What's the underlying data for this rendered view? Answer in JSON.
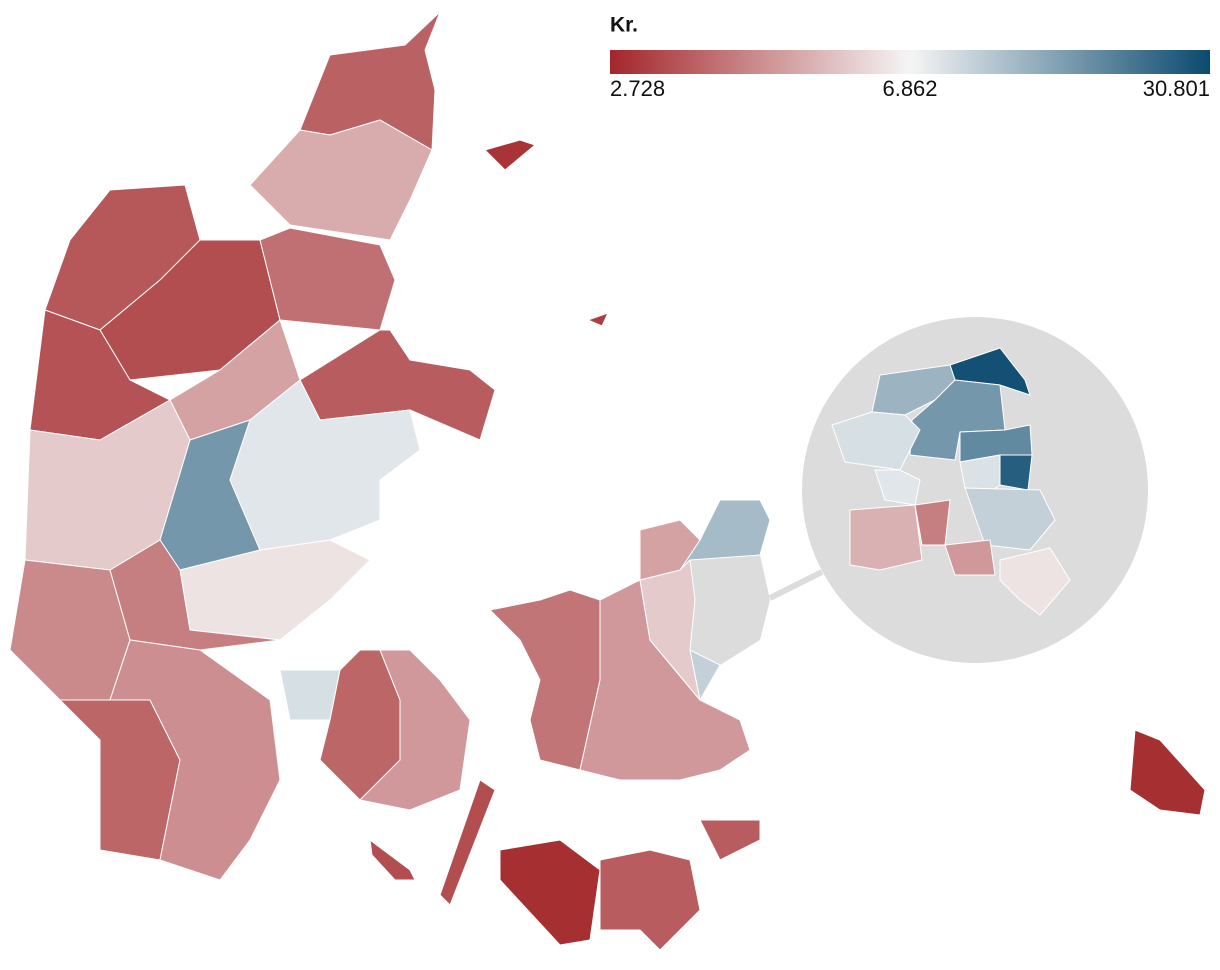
{
  "legend": {
    "title": "Kr.",
    "colors": [
      "#a3262a",
      "#f5f5f5",
      "#0b4a6f"
    ],
    "ticks": [
      {
        "value": 2728,
        "label": "2.728"
      },
      {
        "value": 6862,
        "label": "6.862"
      },
      {
        "value": 30801,
        "label": "30.801"
      }
    ]
  },
  "map": {
    "values": [
      3900,
      5400,
      3700,
      3500,
      4200,
      3600,
      5200,
      3800,
      6000,
      20000,
      9000,
      6500,
      4700,
      4500,
      4000,
      4800,
      10000,
      4000,
      5000,
      4300,
      5000,
      15000,
      6000,
      12000,
      5200,
      2900,
      3800,
      3800,
      2900,
      3000,
      3200,
      3500,
      3500,
      30000,
      16000,
      20000,
      22000,
      28000,
      10000,
      9000,
      9500,
      12000,
      5500,
      4500,
      5000,
      6500
    ]
  }
}
